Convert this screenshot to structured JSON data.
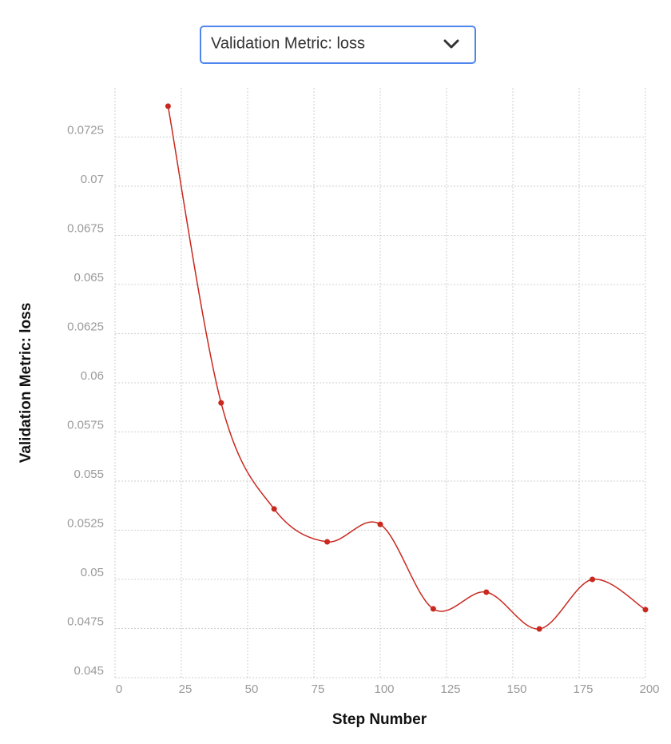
{
  "metric_selector": {
    "value": "Validation Metric: loss"
  },
  "chart_data": {
    "type": "line",
    "xlabel": "Step Number",
    "ylabel": "Validation Metric: loss",
    "x": [
      20,
      40,
      60,
      80,
      100,
      120,
      140,
      160,
      180,
      200
    ],
    "series": [
      {
        "name": "loss",
        "color": "#c8281e",
        "values": [
          0.07407,
          0.05898,
          0.05358,
          0.05191,
          0.0528,
          0.0485,
          0.04935,
          0.04748,
          0.05,
          0.04846
        ]
      }
    ],
    "xlim": [
      0,
      200
    ],
    "xticks": [
      0,
      25,
      50,
      75,
      100,
      125,
      150,
      175,
      200
    ],
    "ylim": [
      0.045,
      0.075
    ],
    "yticks": [
      0.045,
      0.0475,
      0.05,
      0.0525,
      0.055,
      0.0575,
      0.06,
      0.0625,
      0.065,
      0.0675,
      0.07,
      0.0725
    ],
    "grid": true,
    "smooth": true
  }
}
